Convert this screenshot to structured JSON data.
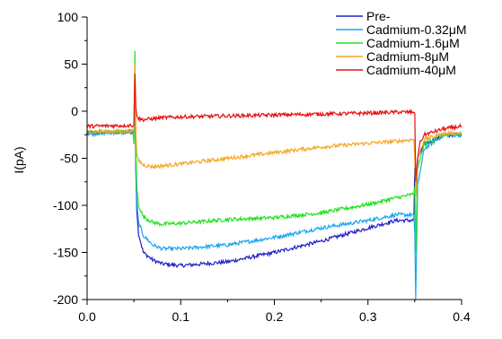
{
  "chart_data": {
    "type": "line",
    "title": "",
    "xlabel": "",
    "ylabel": "I(pA)",
    "xlim": [
      0.0,
      0.4
    ],
    "ylim": [
      -200,
      100
    ],
    "xticks": [
      0.0,
      0.1,
      0.2,
      0.3,
      0.4
    ],
    "xtick_labels": [
      "0.0",
      "0.1",
      "0.2",
      "0.3",
      "0.4"
    ],
    "yticks": [
      100,
      50,
      0,
      -50,
      -100,
      -150,
      -200
    ],
    "ytick_labels": [
      "100",
      "50",
      "0",
      "-50",
      "-100",
      "-150",
      "-200"
    ],
    "grid": false,
    "legend_position": "top-right",
    "series": [
      {
        "name": "Pre-",
        "color": "#1f1fc8",
        "x": [
          0.0,
          0.05,
          0.051,
          0.052,
          0.053,
          0.055,
          0.06,
          0.07,
          0.08,
          0.1,
          0.15,
          0.2,
          0.25,
          0.3,
          0.33,
          0.349,
          0.35,
          0.351,
          0.353,
          0.36,
          0.38,
          0.4
        ],
        "y": [
          -23,
          -22,
          30,
          -60,
          -105,
          -130,
          -150,
          -158,
          -162,
          -164,
          -160,
          -150,
          -138,
          -124,
          -116,
          -116,
          -60,
          -90,
          -50,
          -35,
          -26,
          -24
        ]
      },
      {
        "name": "Cadmium-0.32μM",
        "color": "#19a4f0",
        "x": [
          0.0,
          0.05,
          0.051,
          0.052,
          0.053,
          0.055,
          0.06,
          0.07,
          0.08,
          0.1,
          0.15,
          0.2,
          0.25,
          0.3,
          0.33,
          0.349,
          0.35,
          0.351,
          0.353,
          0.36,
          0.38,
          0.4
        ],
        "y": [
          -24,
          -22,
          40,
          -50,
          -95,
          -118,
          -132,
          -142,
          -146,
          -146,
          -142,
          -134,
          -124,
          -116,
          -110,
          -110,
          -130,
          -200,
          -80,
          -40,
          -26,
          -25
        ]
      },
      {
        "name": "Cadmium-1.6μM",
        "color": "#22e022",
        "x": [
          0.0,
          0.049,
          0.05,
          0.051,
          0.052,
          0.053,
          0.055,
          0.06,
          0.07,
          0.08,
          0.1,
          0.15,
          0.2,
          0.25,
          0.3,
          0.33,
          0.349,
          0.35,
          0.351,
          0.353,
          0.36,
          0.38,
          0.4
        ],
        "y": [
          -22,
          -22,
          -35,
          64,
          -40,
          -80,
          -100,
          -112,
          -118,
          -120,
          -119,
          -115,
          -113,
          -108,
          -99,
          -92,
          -88,
          -80,
          -150,
          -60,
          -35,
          -25,
          -24
        ]
      },
      {
        "name": "Cadmium-8μM",
        "color": "#f5a623",
        "x": [
          0.0,
          0.05,
          0.051,
          0.052,
          0.053,
          0.055,
          0.06,
          0.07,
          0.08,
          0.1,
          0.15,
          0.2,
          0.25,
          0.3,
          0.33,
          0.349,
          0.35,
          0.351,
          0.353,
          0.36,
          0.38,
          0.4
        ],
        "y": [
          -22,
          -21,
          50,
          -20,
          -45,
          -52,
          -57,
          -59,
          -58,
          -56,
          -50,
          -44,
          -38,
          -34,
          -32,
          -30,
          -50,
          -90,
          -50,
          -30,
          -24,
          -23
        ]
      },
      {
        "name": "Cadmium-40μM",
        "color": "#e81010",
        "x": [
          0.0,
          0.05,
          0.051,
          0.052,
          0.053,
          0.055,
          0.06,
          0.07,
          0.08,
          0.1,
          0.15,
          0.2,
          0.25,
          0.3,
          0.33,
          0.349,
          0.35,
          0.351,
          0.352,
          0.355,
          0.36,
          0.38,
          0.4
        ],
        "y": [
          -16,
          -15,
          40,
          5,
          -5,
          -8,
          -9,
          -8,
          -7,
          -6,
          -5,
          -4,
          -3,
          -2,
          -1,
          -1,
          -2,
          -75,
          -60,
          -35,
          -25,
          -19,
          -16
        ]
      }
    ]
  }
}
